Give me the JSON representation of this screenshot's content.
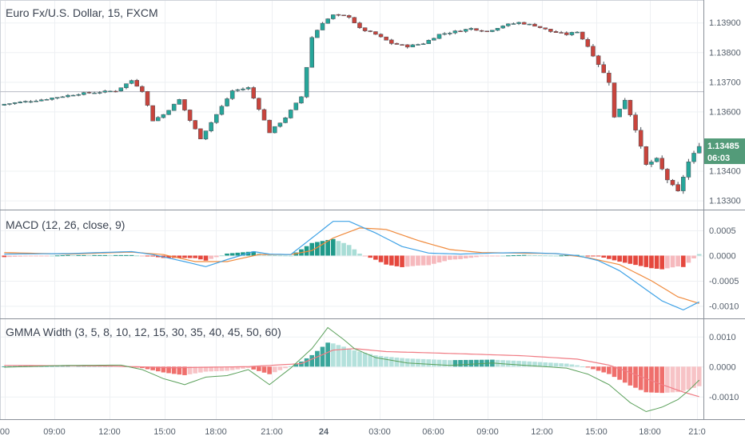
{
  "colors": {
    "up": "#26a69a",
    "down": "#c9443c",
    "macd_line": "#3fa2e6",
    "signal_line": "#f08a3c",
    "gmma_line": "#5aa05a",
    "gmma_signal": "#f07c84",
    "last_price_bg": "#539b79"
  },
  "chart_data": [
    {
      "type": "candlestick",
      "title": "Euro Fx/U.S. Dollar, 15, FXCM",
      "y_ticks": [
        "1.13300",
        "1.13400",
        "1.13485",
        "1.13600",
        "1.13700",
        "1.13800",
        "1.13900"
      ],
      "ylim": [
        1.1328,
        1.1396
      ],
      "last_price": "1.13485",
      "countdown": "06:03",
      "x_ticks": [
        "00",
        "09:00",
        "12:00",
        "15:00",
        "18:00",
        "21:00",
        "24",
        "03:00",
        "06:00",
        "09:00",
        "12:00",
        "15:00",
        "18:00",
        "21:0"
      ],
      "approx_close_path": [
        [
          0,
          1.13625
        ],
        [
          7,
          1.1364
        ],
        [
          14,
          1.1366
        ],
        [
          21,
          1.1367
        ],
        [
          24,
          1.13705
        ],
        [
          26,
          1.1367
        ],
        [
          28,
          1.1357
        ],
        [
          30,
          1.1359
        ],
        [
          33,
          1.1364
        ],
        [
          35,
          1.1357
        ],
        [
          37,
          1.1351
        ],
        [
          40,
          1.1359
        ],
        [
          43,
          1.1367
        ],
        [
          46,
          1.1368
        ],
        [
          48,
          1.1361
        ],
        [
          50,
          1.1353
        ],
        [
          53,
          1.1358
        ],
        [
          56,
          1.1365
        ],
        [
          58,
          1.1385
        ],
        [
          60,
          1.139
        ],
        [
          62,
          1.13925
        ],
        [
          65,
          1.1392
        ],
        [
          67,
          1.1388
        ],
        [
          70,
          1.1386
        ],
        [
          73,
          1.1383
        ],
        [
          76,
          1.1382
        ],
        [
          79,
          1.1383
        ],
        [
          82,
          1.1386
        ],
        [
          85,
          1.1387
        ],
        [
          88,
          1.1388
        ],
        [
          91,
          1.1387
        ],
        [
          94,
          1.1389
        ],
        [
          97,
          1.139
        ],
        [
          100,
          1.1389
        ],
        [
          103,
          1.1387
        ],
        [
          106,
          1.1386
        ],
        [
          108,
          1.1387
        ],
        [
          110,
          1.1382
        ],
        [
          112,
          1.1376
        ],
        [
          114,
          1.137
        ],
        [
          115,
          1.1358
        ],
        [
          117,
          1.1364
        ],
        [
          119,
          1.1354
        ],
        [
          121,
          1.1342
        ],
        [
          123,
          1.1344
        ],
        [
          125,
          1.1337
        ],
        [
          127,
          1.1333
        ],
        [
          129,
          1.1343
        ],
        [
          131,
          1.13485
        ]
      ]
    },
    {
      "type": "macd",
      "title": "MACD (12, 26, close, 9)",
      "y_ticks": [
        "0.0005",
        "0.0000",
        "-0.0005",
        "-0.0010"
      ],
      "ylim": [
        -0.0012,
        0.00085
      ],
      "macd_path": [
        [
          0,
          3e-05
        ],
        [
          12,
          4e-05
        ],
        [
          24,
          8e-05
        ],
        [
          28,
          2e-05
        ],
        [
          34,
          -0.00012
        ],
        [
          38,
          -0.00022
        ],
        [
          42,
          -8e-05
        ],
        [
          47,
          8e-05
        ],
        [
          50,
          3e-05
        ],
        [
          54,
          2e-05
        ],
        [
          58,
          0.00035
        ],
        [
          62,
          0.00068
        ],
        [
          65,
          0.00068
        ],
        [
          70,
          0.00045
        ],
        [
          75,
          0.00018
        ],
        [
          80,
          5e-05
        ],
        [
          86,
          3e-05
        ],
        [
          92,
          5e-05
        ],
        [
          98,
          6e-05
        ],
        [
          104,
          4e-05
        ],
        [
          108,
          0.0
        ],
        [
          112,
          -0.0001
        ],
        [
          116,
          -0.0003
        ],
        [
          120,
          -0.0006
        ],
        [
          124,
          -0.0009
        ],
        [
          128,
          -0.00108
        ],
        [
          131,
          -0.00092
        ]
      ],
      "signal_path": [
        [
          0,
          6e-05
        ],
        [
          12,
          3e-05
        ],
        [
          24,
          7e-05
        ],
        [
          30,
          2e-05
        ],
        [
          36,
          -0.00012
        ],
        [
          42,
          -0.00012
        ],
        [
          48,
          2e-05
        ],
        [
          54,
          2e-05
        ],
        [
          58,
          0.0001
        ],
        [
          62,
          0.00035
        ],
        [
          67,
          0.00055
        ],
        [
          72,
          0.00052
        ],
        [
          78,
          0.0003
        ],
        [
          84,
          0.00012
        ],
        [
          90,
          6e-05
        ],
        [
          96,
          5e-05
        ],
        [
          104,
          4e-05
        ],
        [
          110,
          -4e-05
        ],
        [
          116,
          -0.00018
        ],
        [
          122,
          -0.0005
        ],
        [
          127,
          -0.00082
        ],
        [
          131,
          -0.00095
        ]
      ]
    },
    {
      "type": "gmma_width",
      "title": "GMMA Width (3, 5, 8, 10, 12, 15, 30, 35, 40, 45, 50, 60)",
      "y_ticks": [
        "0.0010",
        "0.0000",
        "-0.0010"
      ],
      "ylim": [
        -0.0017,
        0.0015
      ],
      "width_path": [
        [
          0,
          -2e-05
        ],
        [
          12,
          4e-05
        ],
        [
          22,
          5e-05
        ],
        [
          26,
          -0.0001
        ],
        [
          30,
          -0.0004
        ],
        [
          34,
          -0.0006
        ],
        [
          38,
          -0.00035
        ],
        [
          42,
          -0.0003
        ],
        [
          46,
          -0.0001
        ],
        [
          50,
          -0.0006
        ],
        [
          54,
          -5e-05
        ],
        [
          58,
          0.0006
        ],
        [
          61,
          0.0013
        ],
        [
          64,
          0.0009
        ],
        [
          66,
          0.0006
        ],
        [
          70,
          0.0003
        ],
        [
          76,
          0.00012
        ],
        [
          84,
          4e-05
        ],
        [
          92,
          0.00012
        ],
        [
          100,
          2e-05
        ],
        [
          106,
          -5e-05
        ],
        [
          110,
          -0.00025
        ],
        [
          114,
          -0.0006
        ],
        [
          118,
          -0.0012
        ],
        [
          121,
          -0.0015
        ],
        [
          124,
          -0.00135
        ],
        [
          127,
          -0.0011
        ],
        [
          129,
          -0.0008
        ],
        [
          131,
          -0.00045
        ]
      ],
      "signal_path": [
        [
          0,
          4e-05
        ],
        [
          20,
          2e-05
        ],
        [
          32,
          -4e-05
        ],
        [
          46,
          0.0
        ],
        [
          56,
          0.0001
        ],
        [
          62,
          0.00055
        ],
        [
          66,
          0.0006
        ],
        [
          72,
          0.0005
        ],
        [
          84,
          0.00044
        ],
        [
          98,
          0.00036
        ],
        [
          108,
          0.00025
        ],
        [
          114,
          5e-05
        ],
        [
          118,
          -0.0002
        ],
        [
          124,
          -0.0006
        ],
        [
          128,
          -0.00085
        ],
        [
          131,
          -0.001
        ]
      ]
    }
  ]
}
